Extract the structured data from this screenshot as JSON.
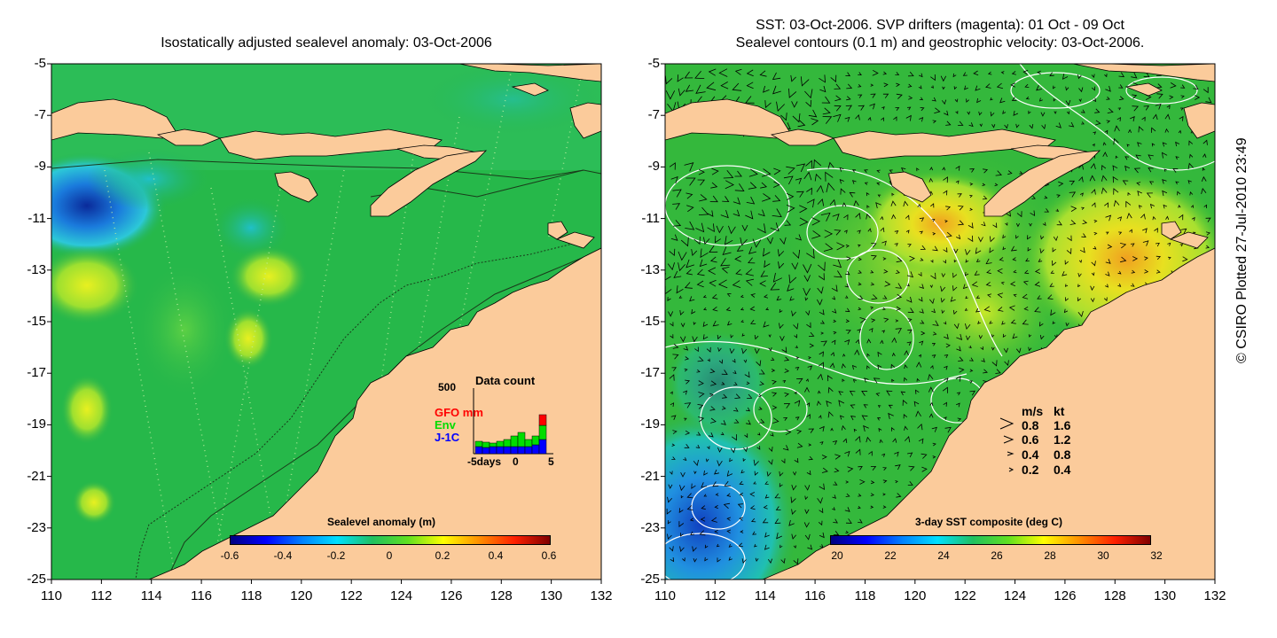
{
  "left_panel": {
    "title": "Isostatically adjusted sealevel anomaly: 03-Oct-2006",
    "colorbar": {
      "label": "Sealevel anomaly (m)",
      "ticks": [
        "-0.6",
        "-0.4",
        "-0.2",
        "0",
        "0.2",
        "0.4",
        "0.6"
      ]
    },
    "data_count": {
      "title": "Data count",
      "y_max_label": "500",
      "x_labels": [
        "-5days",
        "0",
        "5"
      ],
      "series_labels": [
        {
          "name": "GFO mm",
          "color": "#ff0000"
        },
        {
          "name": "Env",
          "color": "#00dd00"
        },
        {
          "name": "J-1C",
          "color": "#0000ff"
        }
      ]
    }
  },
  "right_panel": {
    "title_line1": "SST: 03-Oct-2006. SVP drifters (magenta): 01 Oct - 09 Oct",
    "title_line2": "Sealevel contours (0.1 m) and geostrophic velocity: 03-Oct-2006.",
    "colorbar": {
      "label": "3-day SST composite (deg C)",
      "ticks": [
        "20",
        "22",
        "24",
        "26",
        "28",
        "30",
        "32"
      ]
    },
    "velocity_legend": {
      "header_ms": "m/s",
      "header_kt": "kt",
      "rows": [
        {
          "ms": "0.8",
          "kt": "1.6"
        },
        {
          "ms": "0.6",
          "kt": "1.2"
        },
        {
          "ms": "0.4",
          "kt": "0.8"
        },
        {
          "ms": "0.2",
          "kt": "0.4"
        }
      ]
    }
  },
  "axes": {
    "y_ticks": [
      "-5",
      "-7",
      "-9",
      "-11",
      "-13",
      "-15",
      "-17",
      "-19",
      "-21",
      "-23",
      "-25"
    ],
    "x_ticks": [
      "110",
      "112",
      "114",
      "116",
      "118",
      "120",
      "122",
      "124",
      "126",
      "128",
      "130",
      "132"
    ]
  },
  "copyright": "© CSIRO Plotted 27-Jul-2010 23:49",
  "colors": {
    "land": "#fbcb9b",
    "ocean_left": "#22b14c",
    "ocean_right": "#40c030"
  }
}
